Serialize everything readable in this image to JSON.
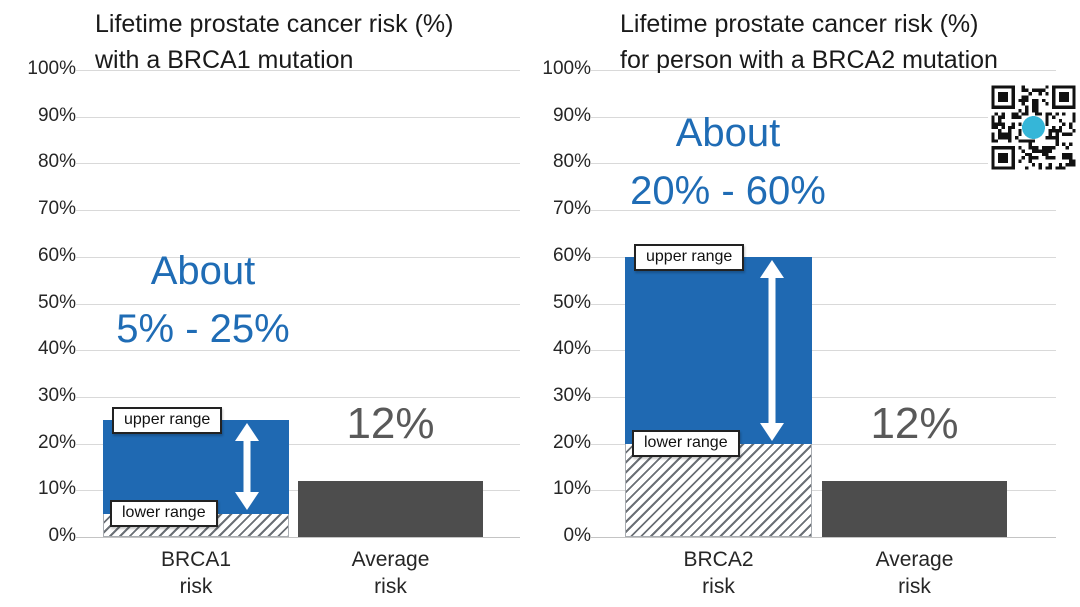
{
  "colors": {
    "bar_blue": "#1f69b2",
    "bar_gray": "#4d4d4d",
    "annotation_blue": "#1f6cb5",
    "value_label_gray": "#595959",
    "gridline_gray": "#d9d9d9",
    "title_text": "#1a1a1a"
  },
  "qr_code": {
    "name": "qr-code",
    "logo_color": "#35b6d8"
  },
  "chart_data": [
    {
      "type": "bar",
      "title": "Lifetime prostate cancer risk (%) with a BRCA1 mutation",
      "title_lines": [
        "Lifetime prostate cancer risk (%)",
        "with a BRCA1 mutation"
      ],
      "annotation_lines": [
        "About",
        "5% - 25%"
      ],
      "ylim": [
        0,
        100
      ],
      "grid": true,
      "legend": "none",
      "y_ticks": [
        "100%",
        "90%",
        "80%",
        "70%",
        "60%",
        "50%",
        "40%",
        "30%",
        "20%",
        "10%",
        "0%"
      ],
      "categories": [
        "BRCA1 risk",
        "Average risk"
      ],
      "bars": [
        {
          "name": "BRCA1 risk",
          "label_lines": [
            "BRCA1",
            "risk"
          ],
          "lower_pct": 5,
          "upper_pct": 25,
          "range_labels": {
            "upper": "upper range",
            "lower": "lower range"
          }
        },
        {
          "name": "Average risk",
          "label_lines": [
            "Average",
            "risk"
          ],
          "value_pct": 12,
          "value_label": "12%"
        }
      ]
    },
    {
      "type": "bar",
      "title": "Lifetime prostate cancer risk (%) for person with a BRCA2 mutation",
      "title_lines": [
        "Lifetime prostate cancer risk (%)",
        "for person with a BRCA2 mutation"
      ],
      "annotation_lines": [
        "About",
        "20% - 60%"
      ],
      "ylim": [
        0,
        100
      ],
      "grid": true,
      "legend": "none",
      "y_ticks": [
        "100%",
        "90%",
        "80%",
        "70%",
        "60%",
        "50%",
        "40%",
        "30%",
        "20%",
        "10%",
        "0%"
      ],
      "categories": [
        "BRCA2 risk",
        "Average risk"
      ],
      "bars": [
        {
          "name": "BRCA2 risk",
          "label_lines": [
            "BRCA2",
            "risk"
          ],
          "lower_pct": 20,
          "upper_pct": 60,
          "range_labels": {
            "upper": "upper range",
            "lower": "lower range"
          }
        },
        {
          "name": "Average risk",
          "label_lines": [
            "Average",
            "risk"
          ],
          "value_pct": 12,
          "value_label": "12%"
        }
      ]
    }
  ]
}
